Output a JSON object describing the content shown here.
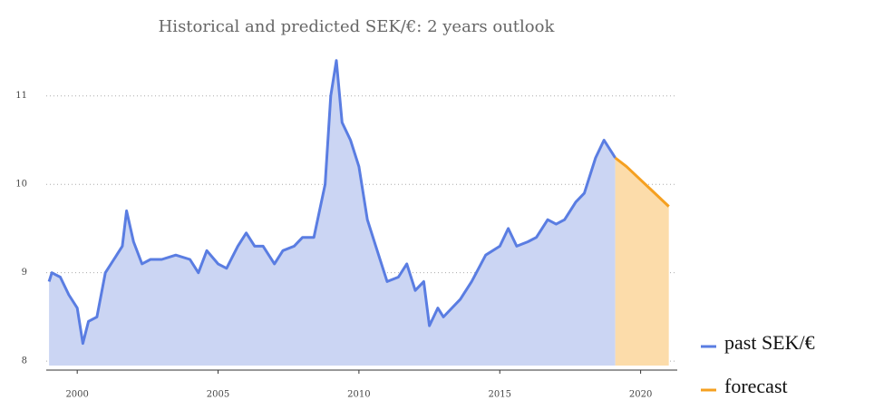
{
  "chart_data": {
    "type": "area",
    "title": "Historical and predicted SEK/€: 2 years outlook",
    "xlim": [
      1998.9,
      2021.3
    ],
    "xticks": [
      2000,
      2005,
      2010,
      2015,
      2020
    ],
    "ylim": [
      7.95,
      11.5
    ],
    "yticks": [
      8,
      9,
      10,
      11
    ],
    "grid": true,
    "legend": "bottom-right",
    "series": [
      {
        "name": "past SEK/€",
        "color": "#5a7de2",
        "fill_color": "#cbd5f3",
        "x": [
          1999.0,
          1999.1,
          1999.4,
          1999.7,
          2000.0,
          2000.2,
          2000.4,
          2000.7,
          2001.0,
          2001.3,
          2001.6,
          2001.75,
          2002.0,
          2002.3,
          2002.6,
          2003.0,
          2003.5,
          2004.0,
          2004.3,
          2004.6,
          2005.0,
          2005.3,
          2005.7,
          2006.0,
          2006.3,
          2006.6,
          2007.0,
          2007.3,
          2007.7,
          2008.0,
          2008.4,
          2008.8,
          2009.0,
          2009.2,
          2009.4,
          2009.7,
          2010.0,
          2010.3,
          2010.6,
          2011.0,
          2011.4,
          2011.7,
          2012.0,
          2012.3,
          2012.5,
          2012.8,
          2013.0,
          2013.3,
          2013.6,
          2014.0,
          2014.5,
          2015.0,
          2015.3,
          2015.6,
          2016.0,
          2016.3,
          2016.7,
          2017.0,
          2017.3,
          2017.7,
          2018.0,
          2018.4,
          2018.7,
          2019.0,
          2019.1
        ],
        "values": [
          8.9,
          9.0,
          8.95,
          8.75,
          8.6,
          8.2,
          8.45,
          8.5,
          9.0,
          9.15,
          9.3,
          9.7,
          9.35,
          9.1,
          9.15,
          9.15,
          9.2,
          9.15,
          9.0,
          9.25,
          9.1,
          9.05,
          9.3,
          9.45,
          9.3,
          9.3,
          9.1,
          9.25,
          9.3,
          9.4,
          9.4,
          10.0,
          11.0,
          11.4,
          10.7,
          10.5,
          10.2,
          9.6,
          9.3,
          8.9,
          8.95,
          9.1,
          8.8,
          8.9,
          8.4,
          8.6,
          8.5,
          8.6,
          8.7,
          8.9,
          9.2,
          9.3,
          9.5,
          9.3,
          9.35,
          9.4,
          9.6,
          9.55,
          9.6,
          9.8,
          9.9,
          10.3,
          10.5,
          10.35,
          10.3
        ]
      },
      {
        "name": "forecast",
        "color": "#f5a020",
        "fill_color": "#fcdcaa",
        "x": [
          2019.1,
          2019.5,
          2020.0,
          2020.5,
          2021.0
        ],
        "values": [
          10.3,
          10.2,
          10.05,
          9.9,
          9.75
        ]
      }
    ]
  }
}
